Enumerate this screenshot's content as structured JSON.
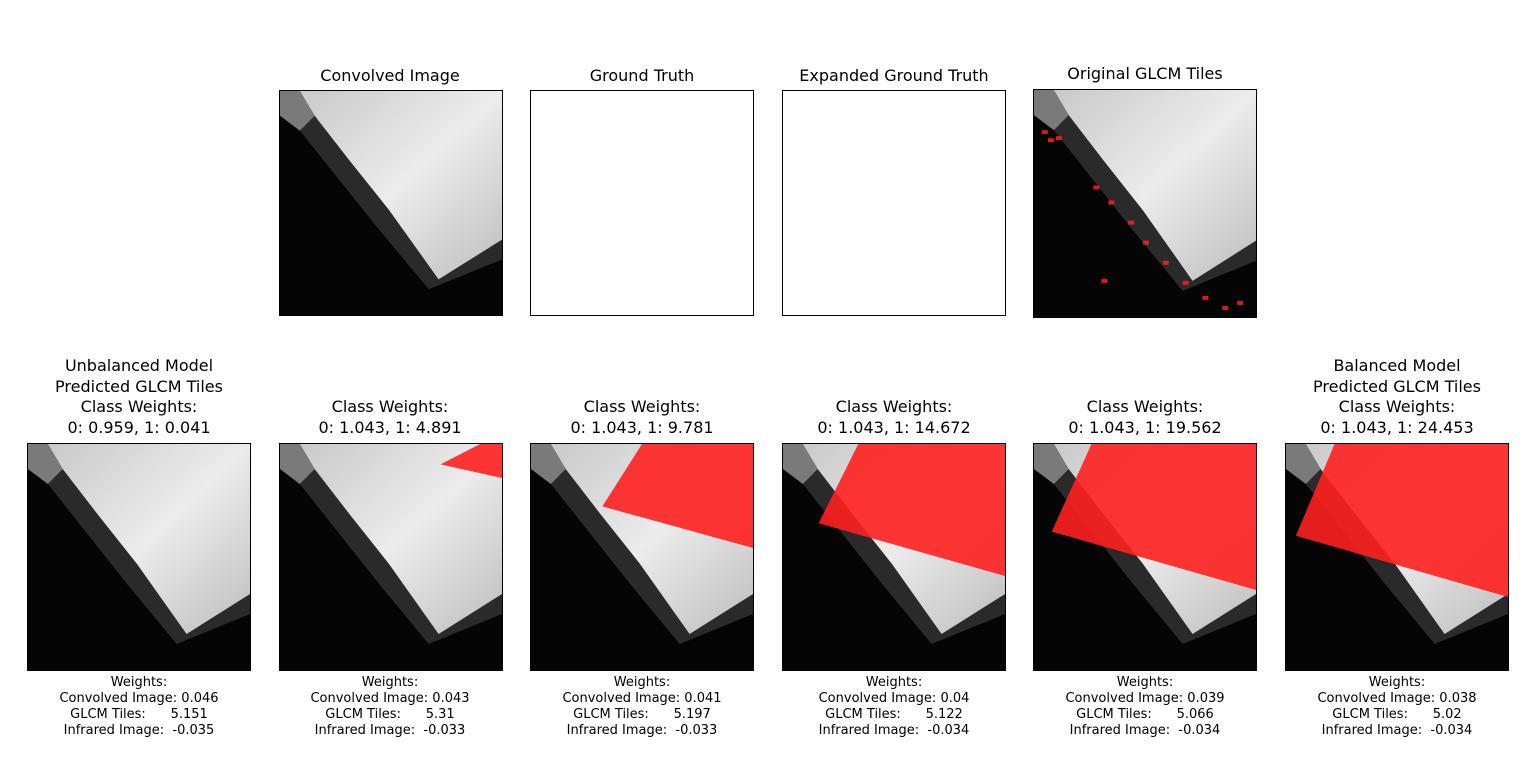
{
  "top_row": [
    {
      "title": "Convolved Image",
      "kind": "gray"
    },
    {
      "title": "Ground Truth",
      "kind": "blank"
    },
    {
      "title": "Expanded Ground Truth",
      "kind": "blank"
    },
    {
      "title": "Original GLCM Tiles",
      "kind": "speckle"
    }
  ],
  "bottom_row": [
    {
      "title": "Unbalanced Model\nPredicted GLCM Tiles\nClass Weights:\n0: 0.959, 1: 0.041",
      "overlay_fraction": 0.0,
      "caption": "Weights:\nConvolved Image: 0.046\nGLCM Tiles:      5.151\nInfrared Image:  -0.035"
    },
    {
      "title": "Class Weights:\n0: 1.043, 1: 4.891",
      "overlay_fraction": 0.1,
      "caption": "Weights:\nConvolved Image: 0.043\nGLCM Tiles:      5.31\nInfrared Image:  -0.033"
    },
    {
      "title": "Class Weights:\n0: 1.043, 1: 9.781",
      "overlay_fraction": 0.6,
      "caption": "Weights:\nConvolved Image: 0.041\nGLCM Tiles:      5.197\nInfrared Image:  -0.033"
    },
    {
      "title": "Class Weights:\n0: 1.043, 1: 14.672",
      "overlay_fraction": 0.8,
      "caption": "Weights:\nConvolved Image: 0.04\nGLCM Tiles:      5.122\nInfrared Image:  -0.034"
    },
    {
      "title": "Class Weights:\n0: 1.043, 1: 19.562",
      "overlay_fraction": 0.9,
      "caption": "Weights:\nConvolved Image: 0.039\nGLCM Tiles:      5.066\nInfrared Image:  -0.034"
    },
    {
      "title": "Balanced Model\nPredicted GLCM Tiles\nClass Weights:\n0: 1.043, 1: 24.453",
      "overlay_fraction": 0.95,
      "caption": "Weights:\nConvolved Image: 0.038\nGLCM Tiles:      5.02\nInfrared Image:  -0.034"
    }
  ],
  "colors": {
    "overlay": "#ff2020",
    "bright": "#ececec",
    "dark": "#050505"
  }
}
